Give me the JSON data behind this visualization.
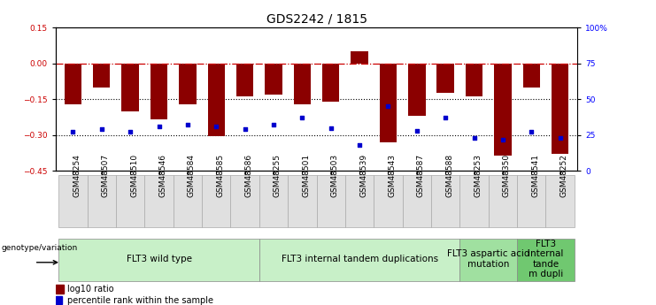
{
  "title": "GDS2242 / 1815",
  "categories": [
    "GSM48254",
    "GSM48507",
    "GSM48510",
    "GSM48546",
    "GSM48584",
    "GSM48585",
    "GSM48586",
    "GSM48255",
    "GSM48501",
    "GSM48503",
    "GSM48539",
    "GSM48543",
    "GSM48587",
    "GSM48588",
    "GSM48253",
    "GSM48350",
    "GSM48541",
    "GSM48252"
  ],
  "log10_ratio": [
    -0.17,
    -0.1,
    -0.2,
    -0.235,
    -0.17,
    -0.305,
    -0.14,
    -0.13,
    -0.17,
    -0.16,
    0.05,
    -0.33,
    -0.22,
    -0.125,
    -0.14,
    -0.385,
    -0.1,
    -0.38
  ],
  "percentile": [
    27,
    29,
    27,
    31,
    32,
    31,
    29,
    32,
    37,
    30,
    18,
    45,
    28,
    37,
    23,
    22,
    27,
    23
  ],
  "bar_color": "#8B0000",
  "dot_color": "#0000CD",
  "ylim": [
    -0.45,
    0.15
  ],
  "yticks_left": [
    0.15,
    0.0,
    -0.15,
    -0.3,
    -0.45
  ],
  "right_yticks": [
    100,
    75,
    50,
    25,
    0
  ],
  "dotted_lines": [
    -0.15,
    -0.3
  ],
  "groups": [
    {
      "label": "FLT3 wild type",
      "start": 0,
      "end": 6,
      "color": "#c8f0c8"
    },
    {
      "label": "FLT3 internal tandem duplications",
      "start": 7,
      "end": 13,
      "color": "#c8f0c8"
    },
    {
      "label": "FLT3 aspartic acid\nmutation",
      "start": 14,
      "end": 15,
      "color": "#a0e0a0"
    },
    {
      "label": "FLT3\ninternal\ntande\nm dupli",
      "start": 16,
      "end": 17,
      "color": "#70c870"
    }
  ],
  "xlabel_genotype": "genotype/variation",
  "legend_bar": "log10 ratio",
  "legend_dot": "percentile rank within the sample",
  "background_color": "#ffffff",
  "title_fontsize": 10,
  "tick_fontsize": 6.5,
  "group_fontsize": 7.5
}
